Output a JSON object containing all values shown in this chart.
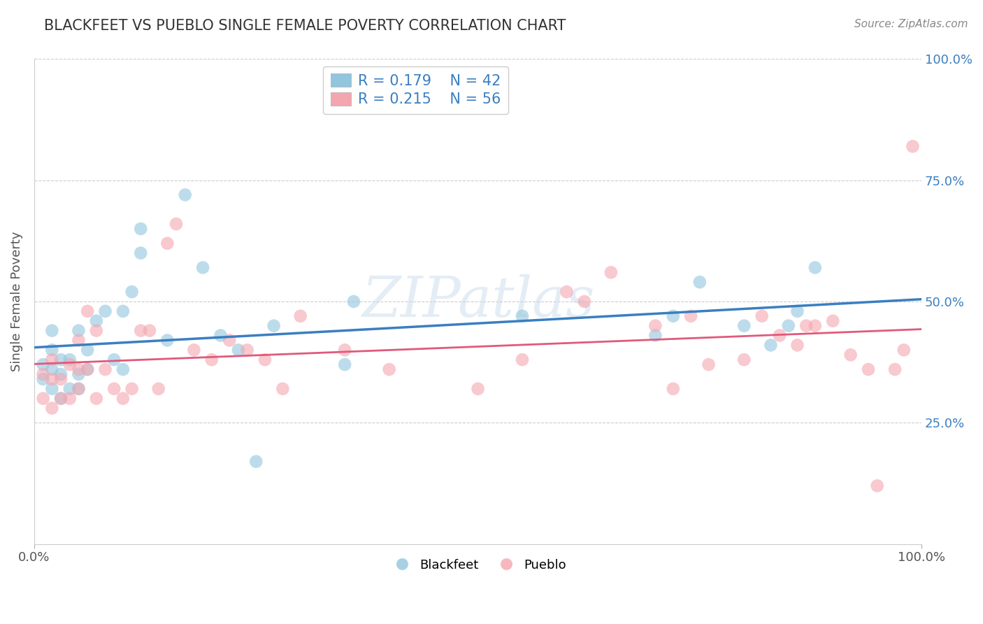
{
  "title": "BLACKFEET VS PUEBLO SINGLE FEMALE POVERTY CORRELATION CHART",
  "source": "Source: ZipAtlas.com",
  "ylabel": "Single Female Poverty",
  "blackfeet_R": 0.179,
  "blackfeet_N": 42,
  "pueblo_R": 0.215,
  "pueblo_N": 56,
  "blackfeet_color": "#92c5de",
  "pueblo_color": "#f4a6b0",
  "blackfeet_line_color": "#3a7fc1",
  "pueblo_line_color": "#e05a7a",
  "title_color": "#333333",
  "axis_label_color": "#3a7fc1",
  "legend_text_color": "#3a7fc1",
  "watermark": "ZIPatlas",
  "xlim": [
    0.0,
    1.0
  ],
  "ylim": [
    0.0,
    1.0
  ],
  "xticks": [
    0.0,
    1.0
  ],
  "xtick_labels": [
    "0.0%",
    "100.0%"
  ],
  "ytick_labels": [
    "25.0%",
    "50.0%",
    "75.0%",
    "100.0%"
  ],
  "yticks": [
    0.25,
    0.5,
    0.75,
    1.0
  ],
  "blackfeet_x": [
    0.01,
    0.01,
    0.02,
    0.02,
    0.02,
    0.02,
    0.03,
    0.03,
    0.03,
    0.04,
    0.04,
    0.05,
    0.05,
    0.05,
    0.06,
    0.06,
    0.07,
    0.08,
    0.09,
    0.1,
    0.1,
    0.11,
    0.12,
    0.12,
    0.15,
    0.17,
    0.19,
    0.21,
    0.23,
    0.25,
    0.27,
    0.35,
    0.36,
    0.55,
    0.7,
    0.72,
    0.75,
    0.8,
    0.83,
    0.85,
    0.86,
    0.88
  ],
  "blackfeet_y": [
    0.34,
    0.37,
    0.32,
    0.36,
    0.4,
    0.44,
    0.3,
    0.35,
    0.38,
    0.32,
    0.38,
    0.32,
    0.35,
    0.44,
    0.36,
    0.4,
    0.46,
    0.48,
    0.38,
    0.36,
    0.48,
    0.52,
    0.6,
    0.65,
    0.42,
    0.72,
    0.57,
    0.43,
    0.4,
    0.17,
    0.45,
    0.37,
    0.5,
    0.47,
    0.43,
    0.47,
    0.54,
    0.45,
    0.41,
    0.45,
    0.48,
    0.57
  ],
  "pueblo_x": [
    0.01,
    0.01,
    0.02,
    0.02,
    0.02,
    0.03,
    0.03,
    0.04,
    0.04,
    0.05,
    0.05,
    0.05,
    0.06,
    0.06,
    0.07,
    0.07,
    0.08,
    0.09,
    0.1,
    0.11,
    0.12,
    0.13,
    0.14,
    0.15,
    0.16,
    0.18,
    0.2,
    0.22,
    0.24,
    0.26,
    0.28,
    0.3,
    0.35,
    0.4,
    0.5,
    0.55,
    0.6,
    0.62,
    0.65,
    0.7,
    0.72,
    0.74,
    0.76,
    0.8,
    0.82,
    0.84,
    0.86,
    0.87,
    0.88,
    0.9,
    0.92,
    0.94,
    0.95,
    0.97,
    0.98,
    0.99
  ],
  "pueblo_y": [
    0.3,
    0.35,
    0.28,
    0.34,
    0.38,
    0.3,
    0.34,
    0.3,
    0.37,
    0.32,
    0.36,
    0.42,
    0.36,
    0.48,
    0.3,
    0.44,
    0.36,
    0.32,
    0.3,
    0.32,
    0.44,
    0.44,
    0.32,
    0.62,
    0.66,
    0.4,
    0.38,
    0.42,
    0.4,
    0.38,
    0.32,
    0.47,
    0.4,
    0.36,
    0.32,
    0.38,
    0.52,
    0.5,
    0.56,
    0.45,
    0.32,
    0.47,
    0.37,
    0.38,
    0.47,
    0.43,
    0.41,
    0.45,
    0.45,
    0.46,
    0.39,
    0.36,
    0.12,
    0.36,
    0.4,
    0.82
  ]
}
